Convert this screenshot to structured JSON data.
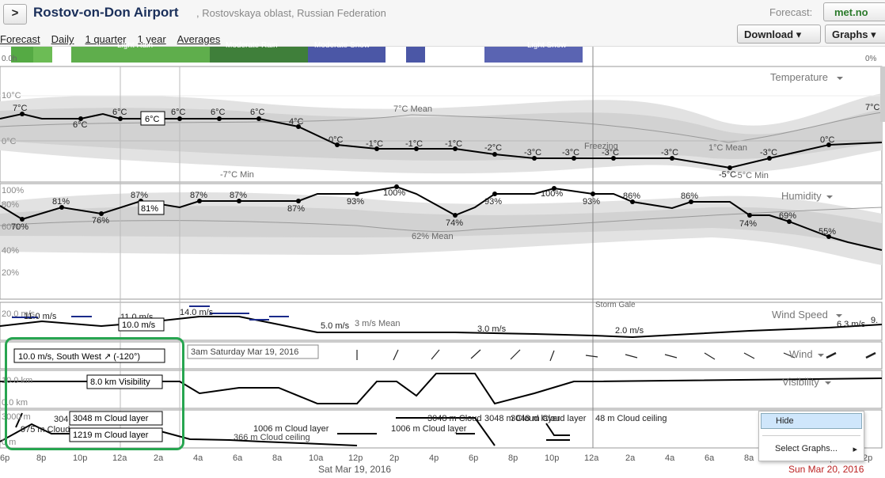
{
  "header": {
    "back_label": ">",
    "title": "Rostov-on-Don Airport",
    "subtitle": ", Rostovskaya oblast, Russian Federation",
    "forecast_label": "Forecast:",
    "provider": "met.no",
    "nav": [
      "Forecast",
      "Daily",
      "1 quarter",
      "1 year",
      "Averages"
    ],
    "download_label": "Download ▾",
    "graphs_label": "Graphs ▾"
  },
  "precip": {
    "left_label": "0.0h",
    "right_label": "0%",
    "labels": [
      "Light Rain",
      "Moderate Rain",
      "Moderate Snow",
      "Light Snow"
    ]
  },
  "temperature": {
    "title": "Temperature",
    "axis": [
      "10°C",
      "0°C"
    ],
    "right_axis": "7°C",
    "values": [
      7,
      6,
      6,
      6,
      6,
      6,
      6,
      4,
      0,
      -1,
      -1,
      -1,
      -2,
      -3,
      -3,
      -3,
      -3,
      -5,
      -3,
      0
    ],
    "labels": [
      "7°C",
      "6°C",
      "6°C",
      "6°C",
      "6°C",
      "6°C",
      "6°C",
      "4°C",
      "0°C",
      "-1°C",
      "-1°C",
      "-1°C",
      "-2°C",
      "-3°C",
      "-3°C",
      "-3°C",
      "-3°C",
      "-5°C",
      "-3°C",
      "0°C"
    ],
    "mean_label": "7°C Mean",
    "mean_label2": "1°C Mean",
    "min_label": "-7°C Min",
    "min_label2": "-5°C Min",
    "freezing_label": "Freezing",
    "tooltip": "6°C"
  },
  "humidity": {
    "title": "Humidity",
    "axis": [
      "100%",
      "80%",
      "60%",
      "40%",
      "20%"
    ],
    "labels": [
      "70%",
      "81%",
      "76%",
      "87%",
      "87%",
      "87%",
      "87%",
      "93%",
      "100%",
      "74%",
      "93%",
      "100%",
      "93%",
      "86%",
      "86%",
      "74%",
      "69%",
      "55%"
    ],
    "mean_label": "62% Mean",
    "tooltip": "81%"
  },
  "wind_speed": {
    "title": "Wind Speed",
    "axis": [
      "20.0 m/s"
    ],
    "labels": [
      "11.0 m/s",
      "11.0 m/s",
      "14.0 m/s",
      "5.0 m/s",
      "3.0 m/s",
      "2.0 m/s",
      "6.3 m/s",
      "9."
    ],
    "mean_label": "3 m/s Mean",
    "gale_label": "Storm\nGale",
    "tooltip": "10.0 m/s"
  },
  "wind": {
    "title": "Wind",
    "tooltip": "10.0 m/s, South West ↗ (-120°)",
    "time_tooltip": "3am Saturday Mar 19, 2016"
  },
  "visibility": {
    "title": "Visibility",
    "axis": [
      "10.0 km",
      "0.0 km"
    ],
    "tooltip": "8.0 km Visibility"
  },
  "clouds": {
    "axis": [
      "3000 m",
      "0 m"
    ],
    "labels": [
      "975 m Cloud",
      "304",
      "1006 m Cloud layer",
      "366 m Cloud ceiling",
      "1006 m Cloud layer",
      "3048 m Cloud",
      "3048 m Cloud layer",
      "3048 m Cloud layer",
      "48 m Cloud ceiling"
    ],
    "tooltip1": "3048 m Cloud layer",
    "tooltip2": "1219 m Cloud layer"
  },
  "time_axis": {
    "ticks": [
      "6p",
      "8p",
      "10p",
      "12a",
      "2a",
      "4a",
      "6a",
      "8a",
      "10a",
      "12p",
      "2p",
      "4p",
      "6p",
      "8p",
      "10p",
      "12a",
      "2a",
      "4a",
      "6a",
      "8a",
      "10a",
      "12p",
      "2p"
    ],
    "date_mid": "Sat Mar 19, 2016",
    "date_right": "Sun Mar 20, 2016"
  },
  "context_menu": {
    "items": [
      "Hide",
      "Select Graphs..."
    ]
  },
  "colors": {
    "accent_green": "#27a550",
    "rain_green": "#55aa44",
    "snow_blue": "#4b57a6",
    "title_blue": "#1a2f5a"
  }
}
